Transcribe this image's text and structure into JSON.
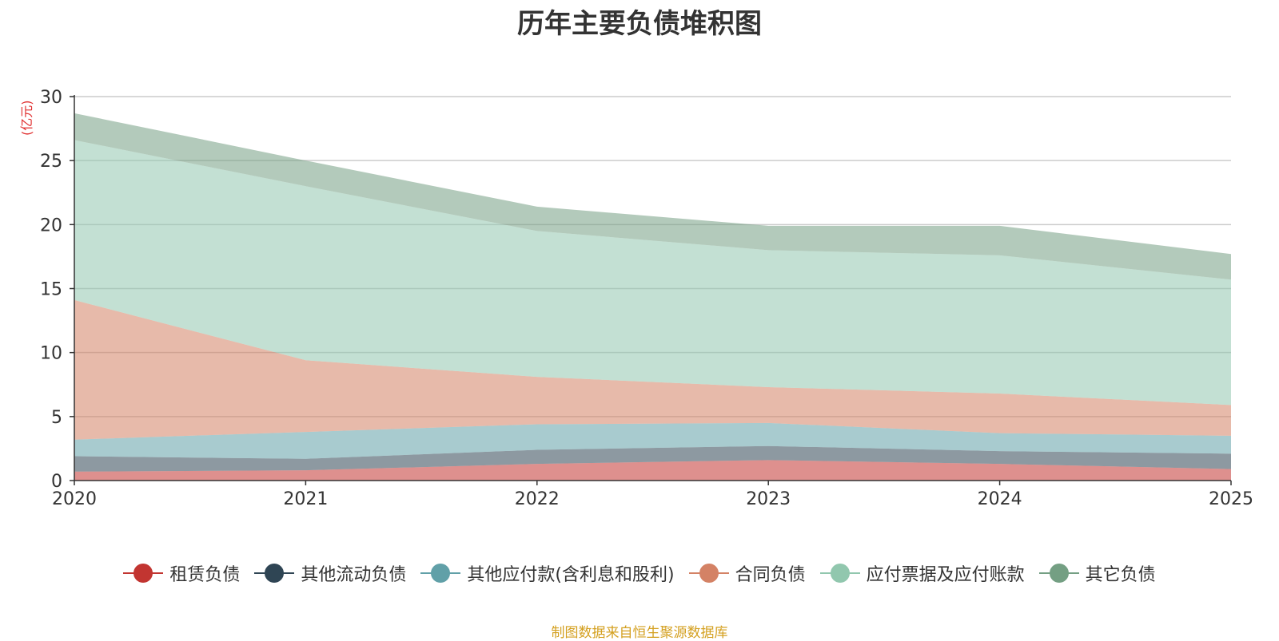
{
  "chart_data": {
    "type": "area",
    "stacked": true,
    "title": "历年主要负债堆积图",
    "unit_label": "(亿元)",
    "x": [
      "2020",
      "2021",
      "2022",
      "2023",
      "2024",
      "2025"
    ],
    "ylim": [
      0,
      30
    ],
    "yticks": [
      "0",
      "5",
      "10",
      "15",
      "20",
      "25",
      "30"
    ],
    "grid": true,
    "legend_position": "bottom",
    "series": [
      {
        "name": "租赁负债",
        "color": "#c23531",
        "values": [
          0.7,
          0.8,
          1.3,
          1.6,
          1.3,
          0.9
        ]
      },
      {
        "name": "其他流动负债",
        "color": "#2f4554",
        "values": [
          1.2,
          0.9,
          1.1,
          1.1,
          1.0,
          1.2
        ]
      },
      {
        "name": "其他应付款(含利息和股利)",
        "color": "#61a0a8",
        "values": [
          1.3,
          2.1,
          2.0,
          1.8,
          1.4,
          1.4
        ]
      },
      {
        "name": "合同负债",
        "color": "#d48265",
        "values": [
          10.9,
          5.6,
          3.7,
          2.8,
          3.1,
          2.4
        ]
      },
      {
        "name": "应付票据及应付账款",
        "color": "#91c7ae",
        "values": [
          12.5,
          13.6,
          11.4,
          10.7,
          10.8,
          9.8
        ]
      },
      {
        "name": "其它负债",
        "color": "#749f83",
        "values": [
          2.1,
          2.0,
          1.9,
          1.9,
          2.3,
          2.0
        ]
      }
    ]
  },
  "source_note": "制图数据来自恒生聚源数据库"
}
